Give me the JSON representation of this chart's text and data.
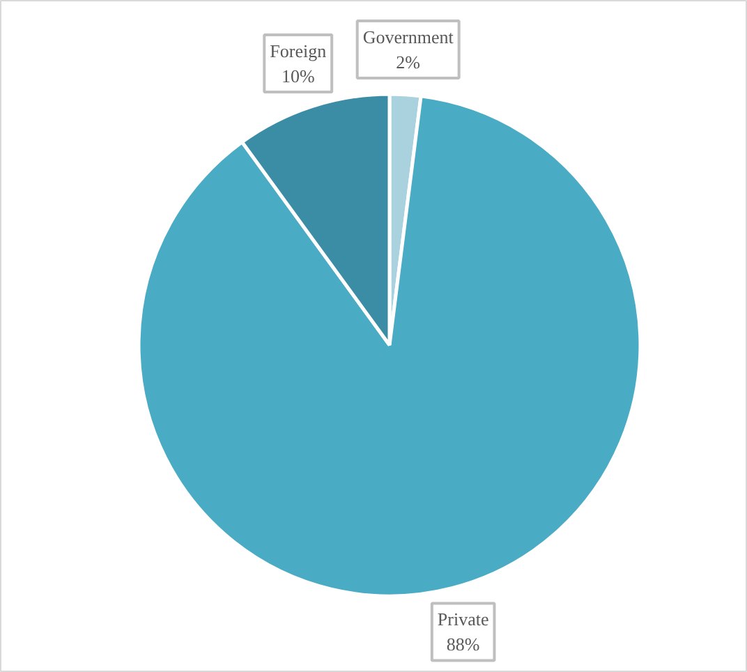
{
  "chart_data": {
    "type": "pie",
    "categories": [
      "Government",
      "Private",
      "Foreign"
    ],
    "values": [
      2,
      88,
      10
    ],
    "value_labels": [
      "2%",
      "88%",
      "10%"
    ],
    "colors": [
      "#a9d1de",
      "#4aabc5",
      "#3b8ca5"
    ]
  }
}
